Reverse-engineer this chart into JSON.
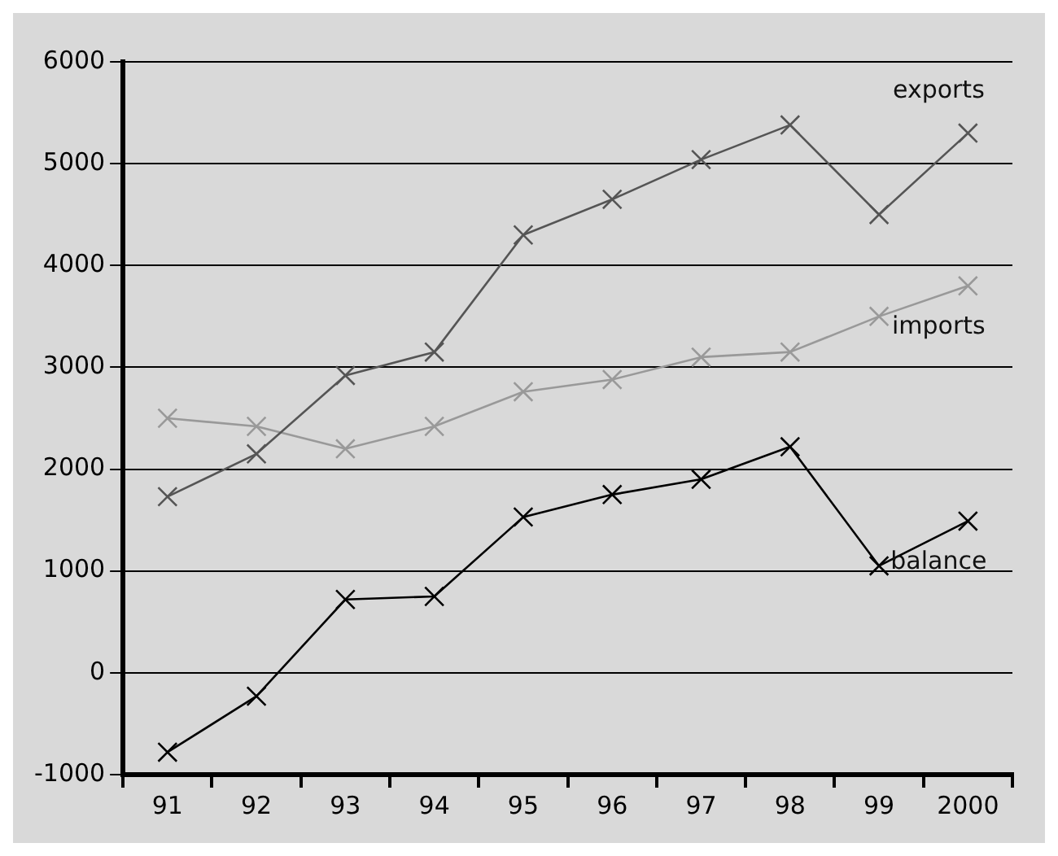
{
  "chart_data": {
    "type": "line",
    "categories": [
      "91",
      "92",
      "93",
      "94",
      "95",
      "96",
      "97",
      "98",
      "99",
      "2000"
    ],
    "series": [
      {
        "name": "exports",
        "color": "#555555",
        "values": [
          1730,
          2150,
          2920,
          3150,
          4300,
          4650,
          5040,
          5380,
          4500,
          5300
        ]
      },
      {
        "name": "imports",
        "color": "#999999",
        "values": [
          2500,
          2420,
          2200,
          2420,
          2760,
          2880,
          3100,
          3150,
          3500,
          3800
        ]
      },
      {
        "name": "balance",
        "color": "#000000",
        "values": [
          -780,
          -230,
          720,
          750,
          1530,
          1750,
          1900,
          2220,
          1050,
          1490
        ]
      }
    ],
    "ylim": [
      -1000,
      6000
    ],
    "yticks": [
      -1000,
      0,
      1000,
      2000,
      3000,
      4000,
      5000,
      6000
    ],
    "grid": "y",
    "legend": false,
    "marker": "cross",
    "line_style": "solid"
  }
}
